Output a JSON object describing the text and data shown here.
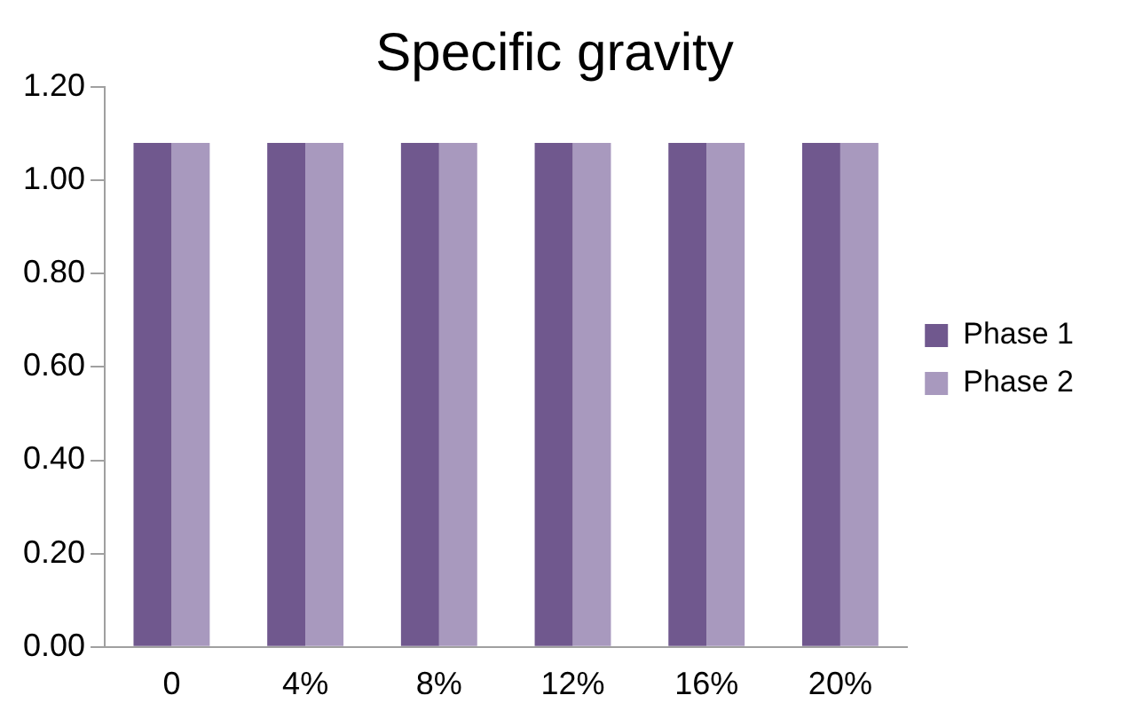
{
  "chart_data": {
    "type": "bar",
    "title": "Specific gravity",
    "categories": [
      "0",
      "4%",
      "8%",
      "12%",
      "16%",
      "20%"
    ],
    "series": [
      {
        "name": "Phase 1",
        "color": "#70588e",
        "values": [
          1.08,
          1.08,
          1.08,
          1.08,
          1.08,
          1.08
        ]
      },
      {
        "name": "Phase 2",
        "color": "#a899be",
        "values": [
          1.08,
          1.08,
          1.08,
          1.08,
          1.08,
          1.08
        ]
      }
    ],
    "ylim": [
      0,
      1.2
    ],
    "yticks": [
      {
        "value": 0,
        "label": "0.00"
      },
      {
        "value": 0.2,
        "label": "0.20"
      },
      {
        "value": 0.4,
        "label": "0.40"
      },
      {
        "value": 0.6,
        "label": "0.60"
      },
      {
        "value": 0.8,
        "label": "0.80"
      },
      {
        "value": 1,
        "label": "1.00"
      },
      {
        "value": 1.2,
        "label": "1.20"
      }
    ],
    "grid": false,
    "legend": "right"
  }
}
